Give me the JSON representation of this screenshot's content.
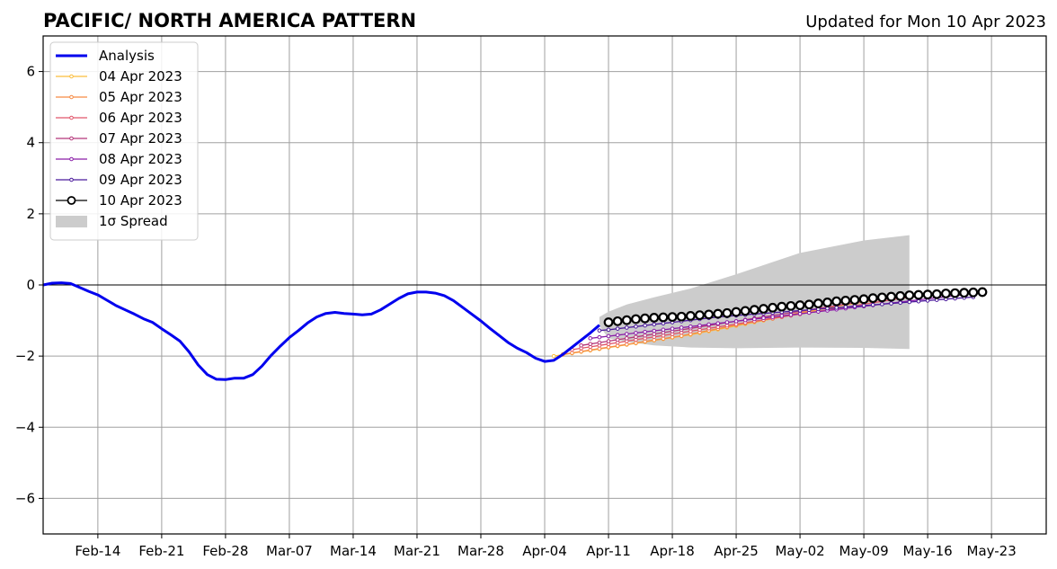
{
  "chart_data": {
    "type": "line",
    "title": "PACIFIC/ NORTH AMERICA PATTERN",
    "subtitle": "Updated for Mon 10 Apr 2023",
    "xlabel": "",
    "ylabel": "",
    "ylim": [
      -7,
      7
    ],
    "xlim": [
      "2023-02-08",
      "2023-05-29"
    ],
    "yticks": [
      -6,
      -4,
      -2,
      0,
      2,
      4,
      6
    ],
    "ytick_labels": [
      "−6",
      "−4",
      "−2",
      "0",
      "2",
      "4",
      "6"
    ],
    "xticks": [
      "2023-02-14",
      "2023-02-21",
      "2023-02-28",
      "2023-03-07",
      "2023-03-14",
      "2023-03-21",
      "2023-03-28",
      "2023-04-04",
      "2023-04-11",
      "2023-04-18",
      "2023-04-25",
      "2023-05-02",
      "2023-05-09",
      "2023-05-16",
      "2023-05-23"
    ],
    "xtick_labels": [
      "Feb-14",
      "Feb-21",
      "Feb-28",
      "Mar-07",
      "Mar-14",
      "Mar-21",
      "Mar-28",
      "Apr-04",
      "Apr-11",
      "Apr-18",
      "Apr-25",
      "May-02",
      "May-09",
      "May-16",
      "May-23"
    ],
    "grid": true,
    "legend_position": "top-left",
    "analysis": {
      "name": "Analysis",
      "color": "#0000ee",
      "x": [
        "2023-02-08",
        "2023-02-09",
        "2023-02-10",
        "2023-02-11",
        "2023-02-12",
        "2023-02-13",
        "2023-02-14",
        "2023-02-15",
        "2023-02-16",
        "2023-02-17",
        "2023-02-18",
        "2023-02-19",
        "2023-02-20",
        "2023-02-21",
        "2023-02-22",
        "2023-02-23",
        "2023-02-24",
        "2023-02-25",
        "2023-02-26",
        "2023-02-27",
        "2023-02-28",
        "2023-03-01",
        "2023-03-02",
        "2023-03-03",
        "2023-03-04",
        "2023-03-05",
        "2023-03-06",
        "2023-03-07",
        "2023-03-08",
        "2023-03-09",
        "2023-03-10",
        "2023-03-11",
        "2023-03-12",
        "2023-03-13",
        "2023-03-14",
        "2023-03-15",
        "2023-03-16",
        "2023-03-17",
        "2023-03-18",
        "2023-03-19",
        "2023-03-20",
        "2023-03-21",
        "2023-03-22",
        "2023-03-23",
        "2023-03-24",
        "2023-03-25",
        "2023-03-26",
        "2023-03-27",
        "2023-03-28",
        "2023-03-29",
        "2023-03-30",
        "2023-03-31",
        "2023-04-01",
        "2023-04-02",
        "2023-04-03",
        "2023-04-04",
        "2023-04-05",
        "2023-04-06",
        "2023-04-07",
        "2023-04-08",
        "2023-04-09",
        "2023-04-10"
      ],
      "values": [
        0.0,
        0.05,
        0.06,
        0.04,
        -0.07,
        -0.18,
        -0.28,
        -0.43,
        -0.58,
        -0.7,
        -0.82,
        -0.95,
        -1.05,
        -1.23,
        -1.4,
        -1.58,
        -1.88,
        -2.25,
        -2.52,
        -2.65,
        -2.66,
        -2.62,
        -2.62,
        -2.52,
        -2.28,
        -1.98,
        -1.72,
        -1.48,
        -1.28,
        -1.07,
        -0.9,
        -0.8,
        -0.77,
        -0.8,
        -0.82,
        -0.84,
        -0.82,
        -0.7,
        -0.54,
        -0.38,
        -0.25,
        -0.2,
        -0.2,
        -0.23,
        -0.3,
        -0.44,
        -0.63,
        -0.82,
        -1.01,
        -1.22,
        -1.42,
        -1.62,
        -1.78,
        -1.9,
        -2.06,
        -2.15,
        -2.12,
        -1.95,
        -1.75,
        -1.55,
        -1.35,
        -1.13
      ]
    },
    "forecasts": [
      {
        "name": "04 Apr 2023",
        "color": "#fbbd3c",
        "start": "2023-04-05",
        "values": [
          -2.0,
          -1.96,
          -1.92,
          -1.88,
          -1.84,
          -1.8,
          -1.76,
          -1.72,
          -1.68,
          -1.64,
          -1.6,
          -1.56,
          -1.52,
          -1.48,
          -1.44,
          -1.4,
          -1.35,
          -1.3,
          -1.25,
          -1.2,
          -1.15,
          -1.1,
          -1.05,
          -1.0,
          -0.95,
          -0.9,
          -0.85,
          -0.8,
          -0.75,
          -0.7,
          -0.65,
          -0.6,
          -0.56,
          -0.52,
          -0.48,
          -0.44,
          -0.4,
          -0.36,
          -0.32,
          -0.29,
          -0.26,
          -0.24
        ]
      },
      {
        "name": "05 Apr 2023",
        "color": "#f68a44",
        "start": "2023-04-06",
        "values": [
          -1.95,
          -1.91,
          -1.87,
          -1.83,
          -1.79,
          -1.75,
          -1.71,
          -1.67,
          -1.63,
          -1.59,
          -1.55,
          -1.51,
          -1.47,
          -1.43,
          -1.38,
          -1.33,
          -1.28,
          -1.23,
          -1.18,
          -1.13,
          -1.08,
          -1.03,
          -0.98,
          -0.93,
          -0.88,
          -0.83,
          -0.78,
          -0.73,
          -0.68,
          -0.63,
          -0.58,
          -0.54,
          -0.5,
          -0.46,
          -0.42,
          -0.38,
          -0.35,
          -0.32,
          -0.29,
          -0.27,
          -0.25,
          -0.23
        ]
      },
      {
        "name": "06 Apr 2023",
        "color": "#e0566a",
        "start": "2023-04-07",
        "values": [
          -1.82,
          -1.78,
          -1.74,
          -1.7,
          -1.66,
          -1.62,
          -1.58,
          -1.54,
          -1.5,
          -1.46,
          -1.42,
          -1.38,
          -1.34,
          -1.3,
          -1.26,
          -1.22,
          -1.18,
          -1.14,
          -1.1,
          -1.06,
          -1.02,
          -0.98,
          -0.94,
          -0.9,
          -0.86,
          -0.82,
          -0.78,
          -0.74,
          -0.7,
          -0.66,
          -0.62,
          -0.58,
          -0.54,
          -0.5,
          -0.46,
          -0.42,
          -0.38,
          -0.35,
          -0.32,
          -0.29,
          -0.27,
          -0.25
        ]
      },
      {
        "name": "07 Apr 2023",
        "color": "#b5367a",
        "start": "2023-04-08",
        "values": [
          -1.7,
          -1.66,
          -1.62,
          -1.58,
          -1.54,
          -1.5,
          -1.46,
          -1.42,
          -1.38,
          -1.34,
          -1.3,
          -1.26,
          -1.22,
          -1.18,
          -1.14,
          -1.1,
          -1.06,
          -1.02,
          -0.98,
          -0.94,
          -0.9,
          -0.86,
          -0.82,
          -0.78,
          -0.74,
          -0.7,
          -0.66,
          -0.62,
          -0.58,
          -0.54,
          -0.5,
          -0.46,
          -0.43,
          -0.4,
          -0.37,
          -0.34,
          -0.31,
          -0.29,
          -0.27,
          -0.25,
          -0.23,
          -0.22
        ]
      },
      {
        "name": "08 Apr 2023",
        "color": "#8a1ea8",
        "start": "2023-04-09",
        "values": [
          -1.5,
          -1.47,
          -1.44,
          -1.41,
          -1.38,
          -1.35,
          -1.32,
          -1.29,
          -1.26,
          -1.23,
          -1.2,
          -1.17,
          -1.14,
          -1.11,
          -1.08,
          -1.05,
          -1.02,
          -0.99,
          -0.96,
          -0.93,
          -0.9,
          -0.87,
          -0.84,
          -0.81,
          -0.78,
          -0.75,
          -0.72,
          -0.69,
          -0.66,
          -0.63,
          -0.6,
          -0.57,
          -0.54,
          -0.51,
          -0.48,
          -0.45,
          -0.42,
          -0.39,
          -0.36,
          -0.33,
          -0.3,
          -0.28
        ]
      },
      {
        "name": "09 Apr 2023",
        "color": "#4b1a9c",
        "start": "2023-04-10",
        "values": [
          -1.28,
          -1.26,
          -1.23,
          -1.2,
          -1.17,
          -1.14,
          -1.11,
          -1.08,
          -1.05,
          -1.02,
          -0.99,
          -0.96,
          -0.93,
          -0.9,
          -0.88,
          -0.86,
          -0.84,
          -0.82,
          -0.8,
          -0.78,
          -0.76,
          -0.74,
          -0.72,
          -0.7,
          -0.68,
          -0.66,
          -0.64,
          -0.62,
          -0.6,
          -0.58,
          -0.56,
          -0.54,
          -0.52,
          -0.5,
          -0.48,
          -0.46,
          -0.44,
          -0.42,
          -0.4,
          -0.38,
          -0.36,
          -0.34
        ]
      },
      {
        "name": "10 Apr 2023",
        "color": "#000000",
        "start": "2023-04-11",
        "values": [
          -1.05,
          -1.02,
          -0.99,
          -0.96,
          -0.94,
          -0.92,
          -0.91,
          -0.9,
          -0.89,
          -0.87,
          -0.85,
          -0.83,
          -0.81,
          -0.79,
          -0.76,
          -0.73,
          -0.7,
          -0.67,
          -0.64,
          -0.61,
          -0.59,
          -0.57,
          -0.55,
          -0.52,
          -0.49,
          -0.46,
          -0.44,
          -0.42,
          -0.4,
          -0.37,
          -0.35,
          -0.33,
          -0.31,
          -0.29,
          -0.28,
          -0.27,
          -0.26,
          -0.24,
          -0.23,
          -0.22,
          -0.21,
          -0.2
        ]
      }
    ],
    "spread": {
      "name": "1σ Spread",
      "color": "#cccccc",
      "x": [
        "2023-04-10",
        "2023-04-11",
        "2023-04-13",
        "2023-04-16",
        "2023-04-20",
        "2023-04-25",
        "2023-05-02",
        "2023-05-09",
        "2023-05-14"
      ],
      "upper": [
        -0.9,
        -0.75,
        -0.55,
        -0.35,
        -0.1,
        0.3,
        0.9,
        1.25,
        1.4
      ],
      "lower": [
        -1.15,
        -1.5,
        -1.6,
        -1.7,
        -1.76,
        -1.78,
        -1.76,
        -1.77,
        -1.8
      ]
    }
  }
}
